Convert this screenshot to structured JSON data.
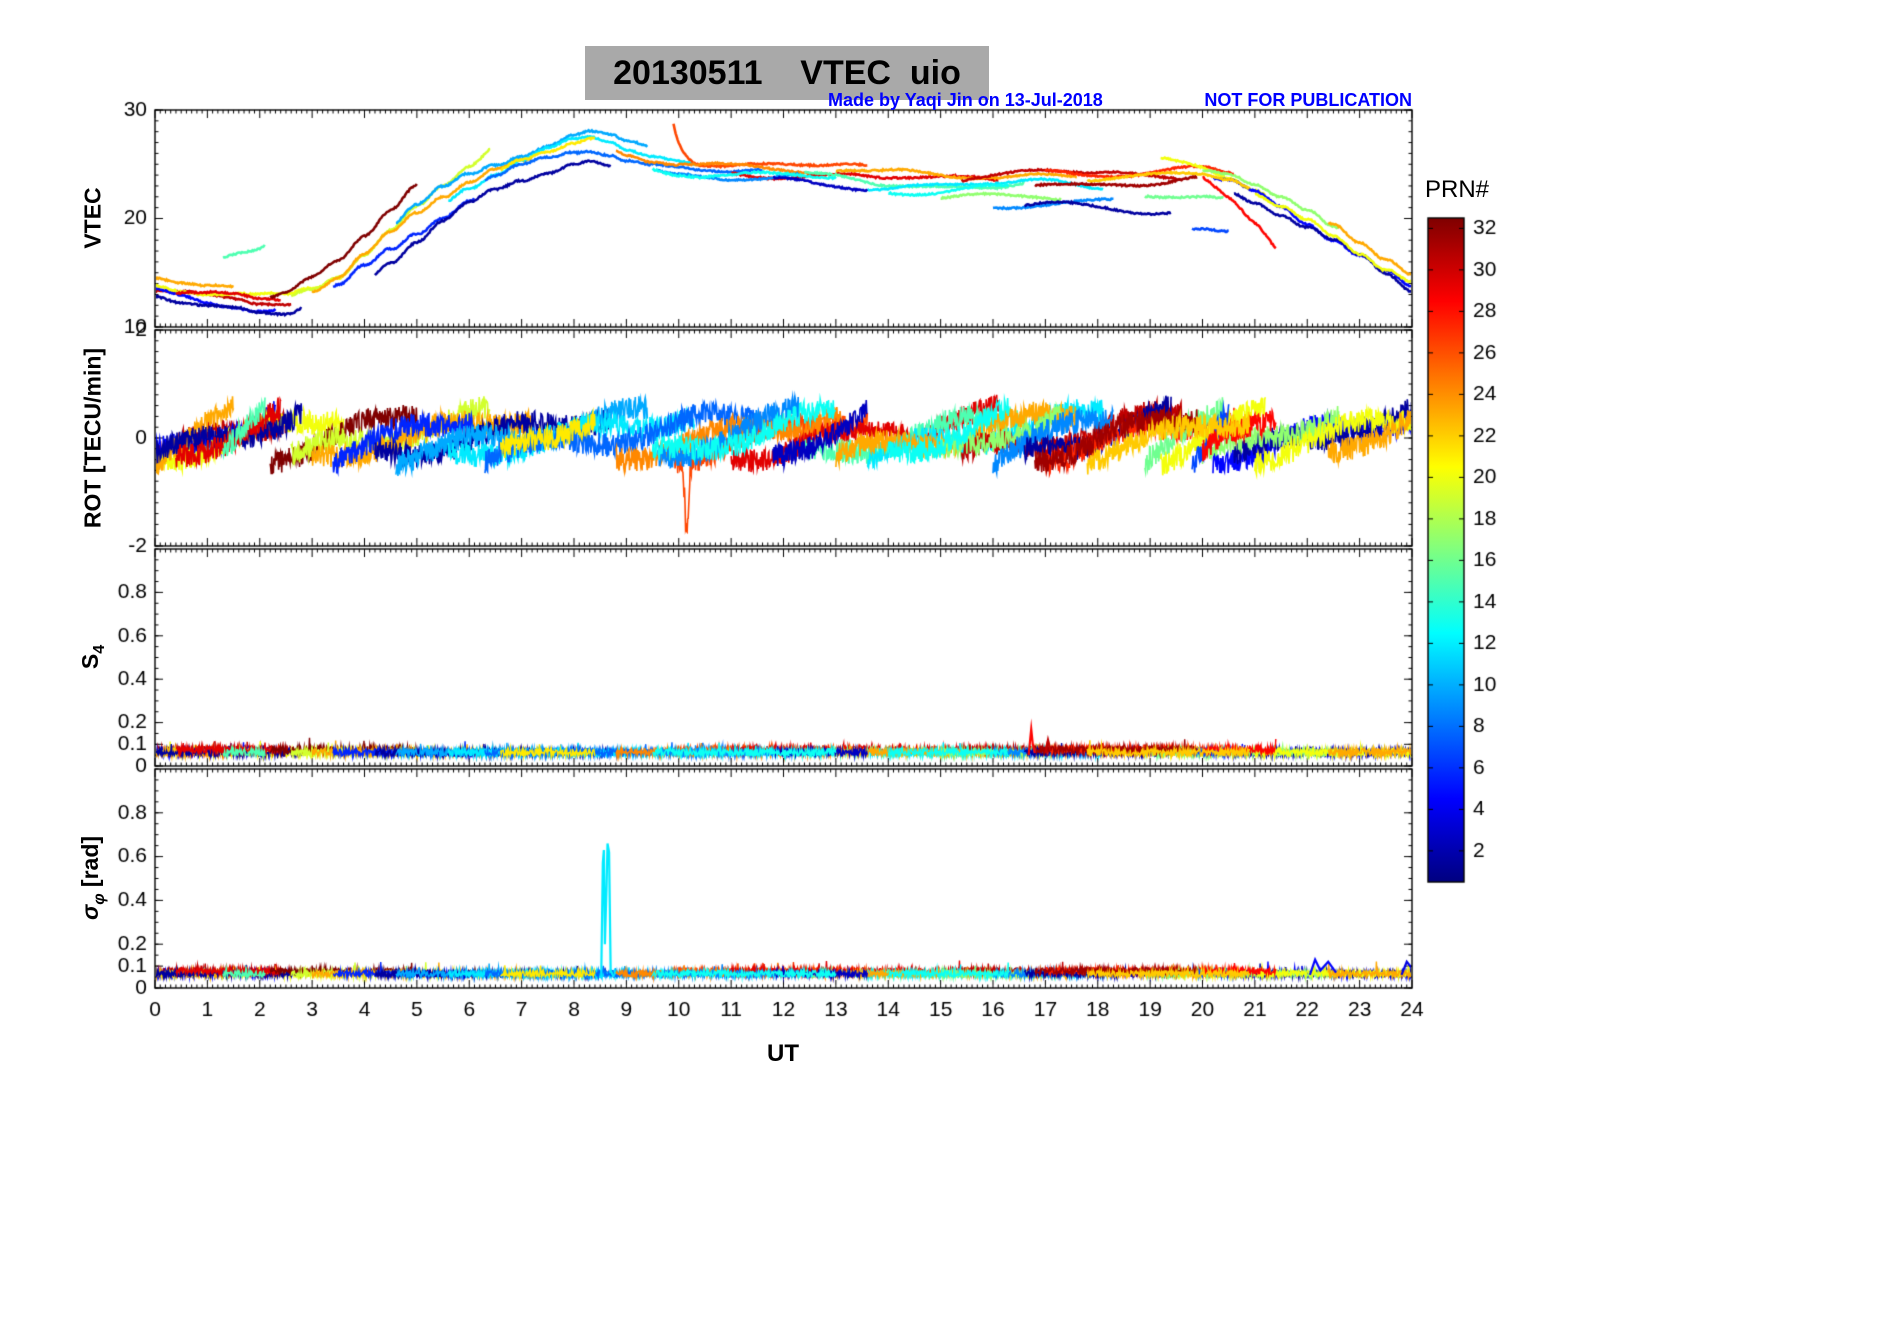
{
  "header": {
    "title": "20130511    VTEC  uio",
    "credit": "Made by Yaqi Jin on 13-Jul-2018",
    "warning": "NOT FOR PUBLICATION",
    "credit_color": "#0000ff",
    "title_bg": "#a9a9a9"
  },
  "chart_data": {
    "type": "line",
    "title": "20130511    VTEC  uio",
    "xlabel": "UT",
    "x_range": [
      0,
      24
    ],
    "xticks": [
      0,
      1,
      2,
      3,
      4,
      5,
      6,
      7,
      8,
      9,
      10,
      11,
      12,
      13,
      14,
      15,
      16,
      17,
      18,
      19,
      20,
      21,
      22,
      23,
      24
    ],
    "grid": false,
    "colorbar": {
      "label": "PRN#",
      "min": 1,
      "max": 32,
      "ticks": [
        2,
        4,
        6,
        8,
        10,
        12,
        14,
        16,
        18,
        20,
        22,
        24,
        26,
        28,
        30,
        32
      ],
      "colormap": "jet"
    },
    "panels": [
      {
        "name": "vtec",
        "ylabel": "VTEC",
        "ylim": [
          10,
          30
        ],
        "yticks": [
          10,
          20,
          30
        ],
        "minor_step": 1
      },
      {
        "name": "rot",
        "ylabel": "ROT [TECU/min]",
        "ylim": [
          -2,
          2
        ],
        "yticks": [
          -2,
          0,
          2
        ],
        "minor_step": 0.2
      },
      {
        "name": "s4",
        "label_main": "S",
        "label_sub": "4",
        "ylim": [
          0,
          1
        ],
        "yticks": [
          0,
          0.1,
          0.2,
          0.4,
          0.6,
          0.8
        ],
        "minor_step": 0.05
      },
      {
        "name": "sigma_phi",
        "label_main": "σ",
        "label_sub": "φ",
        "label_unit": " [rad]",
        "ylim": [
          0,
          1
        ],
        "yticks": [
          0,
          0.1,
          0.2,
          0.4,
          0.6,
          0.8
        ],
        "minor_step": 0.05
      }
    ],
    "vtec_envelope": {
      "t": [
        0,
        0.5,
        1,
        1.5,
        2,
        2.5,
        3,
        3.5,
        4,
        4.5,
        5,
        5.5,
        6,
        6.5,
        7,
        7.5,
        8,
        8.3,
        8.7,
        9,
        9.5,
        10,
        10.5,
        11,
        12,
        13,
        14,
        15,
        16,
        17,
        18,
        19,
        20,
        20.5,
        21,
        21.5,
        22,
        22.5,
        23,
        23.5,
        24
      ],
      "v": [
        13.6,
        13.2,
        12.9,
        12.7,
        12.3,
        12.2,
        12.9,
        14.0,
        15.8,
        17.6,
        19.4,
        21.0,
        22.4,
        23.6,
        24.6,
        25.4,
        26.2,
        26.5,
        26.2,
        25.6,
        25.0,
        24.6,
        24.3,
        24.1,
        24.0,
        23.8,
        23.4,
        23.3,
        23.4,
        23.7,
        23.5,
        23.4,
        23.6,
        23.2,
        22.3,
        21.2,
        19.9,
        18.4,
        16.8,
        15.2,
        13.8
      ]
    },
    "arcs": [
      {
        "prn": 30,
        "t0": 0.0,
        "t1": 2.6,
        "dv": -0.3
      },
      {
        "prn": 5,
        "t0": 0.0,
        "t1": 2.3,
        "dv": -0.5
      },
      {
        "prn": 20,
        "t0": 0.0,
        "t1": 3.6,
        "dv": 0.4
      },
      {
        "prn": 23,
        "t0": 0.0,
        "t1": 1.5,
        "dv": 0.7
      },
      {
        "prn": 2,
        "t0": 0.0,
        "t1": 2.8,
        "dv": -0.7
      },
      {
        "prn": 29,
        "t0": 0.4,
        "t1": 2.4,
        "dv": 0.1
      },
      {
        "prn": 15,
        "t0": 1.3,
        "t1": 2.1,
        "dv": 3.5,
        "dv2": 5.5
      },
      {
        "prn": 32,
        "t0": 2.2,
        "t1": 5.0,
        "dv": 0.5,
        "dv2": 3.5
      },
      {
        "prn": 19,
        "t0": 2.6,
        "t1": 6.4,
        "dv": 0.3,
        "dv2": 2.8
      },
      {
        "prn": 23,
        "t0": 3.0,
        "t1": 7.2,
        "dv": 0.8
      },
      {
        "prn": 6,
        "t0": 3.4,
        "t1": 6.1,
        "dv": -0.5
      },
      {
        "prn": 2,
        "t0": 4.2,
        "t1": 8.7,
        "dv": -1.3
      },
      {
        "prn": 10,
        "t0": 4.6,
        "t1": 9.4,
        "dv": 1.6
      },
      {
        "prn": 12,
        "t0": 5.6,
        "t1": 10.3,
        "dv": 0.7
      },
      {
        "prn": 8,
        "t0": 6.3,
        "t1": 11.6,
        "dv": 0.1
      },
      {
        "prn": 21,
        "t0": 6.6,
        "t1": 8.4,
        "dv": 1.0
      },
      {
        "prn": 26,
        "t0": 9.9,
        "t1": 13.6,
        "dv": 0.9,
        "v0add": 3.6,
        "rspike": [
          10.15,
          -1.25
        ]
      },
      {
        "prn": 24,
        "t0": 8.8,
        "t1": 13.1,
        "dv": 0.4
      },
      {
        "prn": 29,
        "t0": 11.0,
        "t1": 16.1,
        "dv": 0.2
      },
      {
        "prn": 15,
        "t0": 12.4,
        "t1": 16.6,
        "dv": -0.2
      },
      {
        "prn": 12,
        "t0": 13.6,
        "t1": 18.1,
        "dv": -0.4
      },
      {
        "prn": 23,
        "t0": 13.0,
        "t1": 17.6,
        "dv": 0.6
      },
      {
        "prn": 30,
        "t0": 15.4,
        "t1": 19.6,
        "dv": 0.5
      },
      {
        "prn": 17,
        "t0": 15.0,
        "t1": 17.3,
        "dv": -1.6
      },
      {
        "prn": 9,
        "t0": 16.0,
        "t1": 18.3,
        "dv": -2.1
      },
      {
        "prn": 2,
        "t0": 16.6,
        "t1": 19.4,
        "dv": -2.6
      },
      {
        "prn": 27,
        "t0": 17.0,
        "t1": 20.6,
        "dv": 0.8
      },
      {
        "prn": 20,
        "t0": 19.2,
        "t1": 21.2,
        "dv": 1.8,
        "dv2": 0.5
      },
      {
        "prn": 16,
        "t0": 18.9,
        "t1": 20.4,
        "dv": -1.2
      },
      {
        "prn": 5,
        "t0": 20.2,
        "t1": 24.0,
        "dv": 0.0
      },
      {
        "prn": 2,
        "t0": 20.6,
        "t1": 24.0,
        "dv": -0.6
      },
      {
        "prn": 17,
        "t0": 20.0,
        "t1": 22.6,
        "dv": 0.6
      },
      {
        "prn": 20,
        "t0": 21.0,
        "t1": 24.0,
        "dv": 0.2
      },
      {
        "prn": 23,
        "t0": 22.4,
        "t1": 24.0,
        "dv": 0.8
      },
      {
        "prn": 7,
        "t0": 19.8,
        "t1": 20.5,
        "dv": -4.6
      },
      {
        "prn": 28,
        "t0": 20.0,
        "t1": 21.4,
        "dv": 0.3,
        "dv2": -3.8
      },
      {
        "prn": 13,
        "t0": 14.0,
        "t1": 16.3,
        "dv": -0.7
      },
      {
        "prn": 31,
        "t0": 16.8,
        "t1": 19.9,
        "dv": -0.2
      },
      {
        "prn": 9,
        "t0": 9.6,
        "t1": 12.3,
        "dv": -0.3
      },
      {
        "prn": 3,
        "t0": 11.8,
        "t1": 13.6,
        "dv": -0.5
      },
      {
        "prn": 22,
        "t0": 17.8,
        "t1": 20.9,
        "dv": 0.3
      },
      {
        "prn": 13,
        "t0": 9.5,
        "t1": 13.0,
        "dv": -0.2
      }
    ],
    "events": {
      "s4": [
        {
          "prn": 28,
          "points": [
            [
              16.68,
              0.05
            ],
            [
              16.73,
              0.17
            ],
            [
              16.76,
              0.1
            ],
            [
              16.8,
              0.06
            ]
          ]
        },
        {
          "prn": 30,
          "points": [
            [
              17.0,
              0.06
            ],
            [
              17.05,
              0.12
            ],
            [
              17.1,
              0.07
            ]
          ]
        }
      ],
      "sigma": [
        {
          "prn": 12,
          "points": [
            [
              8.48,
              0.05
            ],
            [
              8.52,
              0.05
            ],
            [
              8.55,
              0.57
            ],
            [
              8.57,
              0.63
            ],
            [
              8.59,
              0.2
            ],
            [
              8.62,
              0.45
            ],
            [
              8.64,
              0.66
            ],
            [
              8.67,
              0.62
            ],
            [
              8.7,
              0.08
            ],
            [
              8.76,
              0.05
            ]
          ]
        },
        {
          "prn": 5,
          "points": [
            [
              22.05,
              0.06
            ],
            [
              22.15,
              0.13
            ],
            [
              22.25,
              0.08
            ],
            [
              22.4,
              0.12
            ],
            [
              22.55,
              0.07
            ]
          ]
        },
        {
          "prn": 4,
          "points": [
            [
              23.8,
              0.06
            ],
            [
              23.9,
              0.12
            ],
            [
              24.0,
              0.09
            ]
          ]
        }
      ]
    },
    "noise": {
      "vtec_jitter": 0.15,
      "rot_amp": 0.22,
      "rot_drift": [
        -0.35,
        0.45
      ],
      "s4_base": 0.045,
      "s4_amp": 0.035,
      "sigma_base": 0.05,
      "sigma_amp": 0.03
    }
  }
}
